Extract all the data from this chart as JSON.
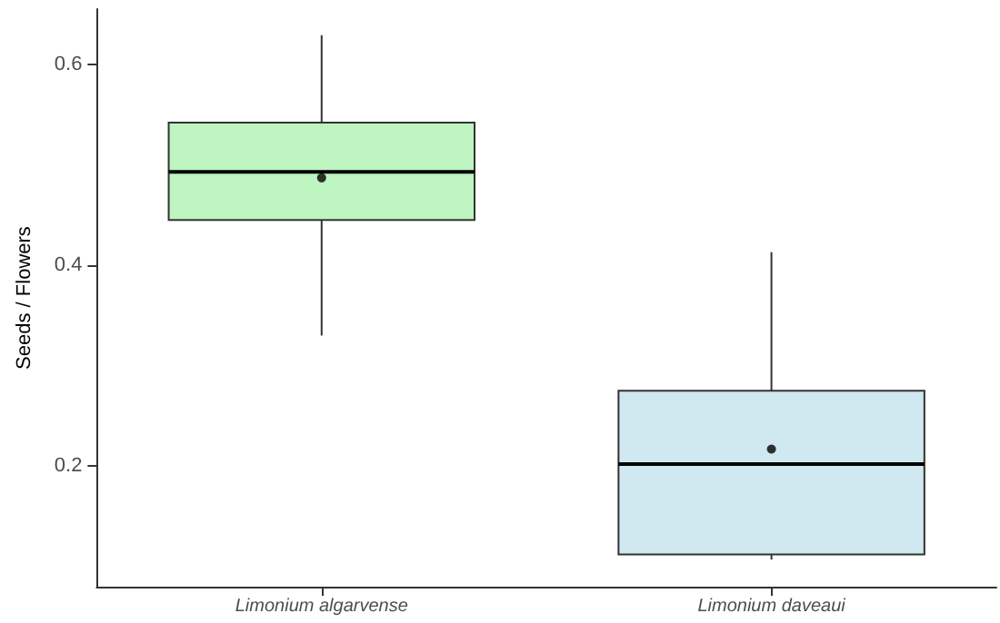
{
  "chart_data": {
    "type": "box",
    "ylabel": "Seeds / Flowers",
    "categories": [
      "Limonium algarvense",
      "Limonium daveaui"
    ],
    "colors": [
      "#bdf4c0",
      "#d0e8ef"
    ],
    "boxes": [
      {
        "low": 0.33,
        "q1": 0.445,
        "median": 0.493,
        "q3": 0.542,
        "high": 0.629,
        "mean": 0.487
      },
      {
        "low": 0.107,
        "q1": 0.112,
        "median": 0.202,
        "q3": 0.275,
        "high": 0.413,
        "mean": 0.217
      }
    ],
    "ylim": [
      0.08,
      0.655
    ],
    "yticks": [
      0.2,
      0.4,
      0.6
    ],
    "grid": false
  }
}
